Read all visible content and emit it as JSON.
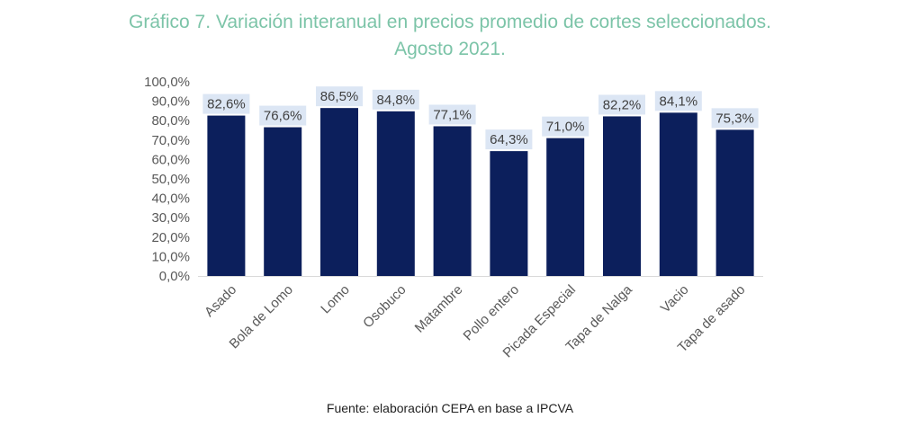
{
  "title_line1": "Gráfico 7. Variación interanual en precios promedio de cortes seleccionados.",
  "title_line2": "Agosto 2021.",
  "source": "Fuente: elaboración CEPA en base a IPCVA",
  "colors": {
    "title": "#7cc4a8",
    "bar": "#0c1f5c",
    "data_label_bg": "#dce6f4",
    "axis": "#d9d9d9"
  },
  "chart_data": {
    "type": "bar",
    "categories": [
      "Asado",
      "Bola de Lomo",
      "Lomo",
      "Osobuco",
      "Matambre",
      "Pollo entero",
      "Picada Especial",
      "Tapa de Nalga",
      "Vacio",
      "Tapa de asado"
    ],
    "values": [
      82.6,
      76.6,
      86.5,
      84.8,
      77.1,
      64.3,
      71.0,
      82.2,
      84.1,
      75.3
    ],
    "data_labels": [
      "82,6%",
      "76,6%",
      "86,5%",
      "84,8%",
      "77,1%",
      "64,3%",
      "71,0%",
      "82,2%",
      "84,1%",
      "75,3%"
    ],
    "ylim": [
      0,
      100
    ],
    "yticks": [
      0,
      10,
      20,
      30,
      40,
      50,
      60,
      70,
      80,
      90,
      100
    ],
    "ytick_labels": [
      "0,0%",
      "10,0%",
      "20,0%",
      "30,0%",
      "40,0%",
      "50,0%",
      "60,0%",
      "70,0%",
      "80,0%",
      "90,0%",
      "100,0%"
    ],
    "grid": false,
    "legend": "none"
  }
}
